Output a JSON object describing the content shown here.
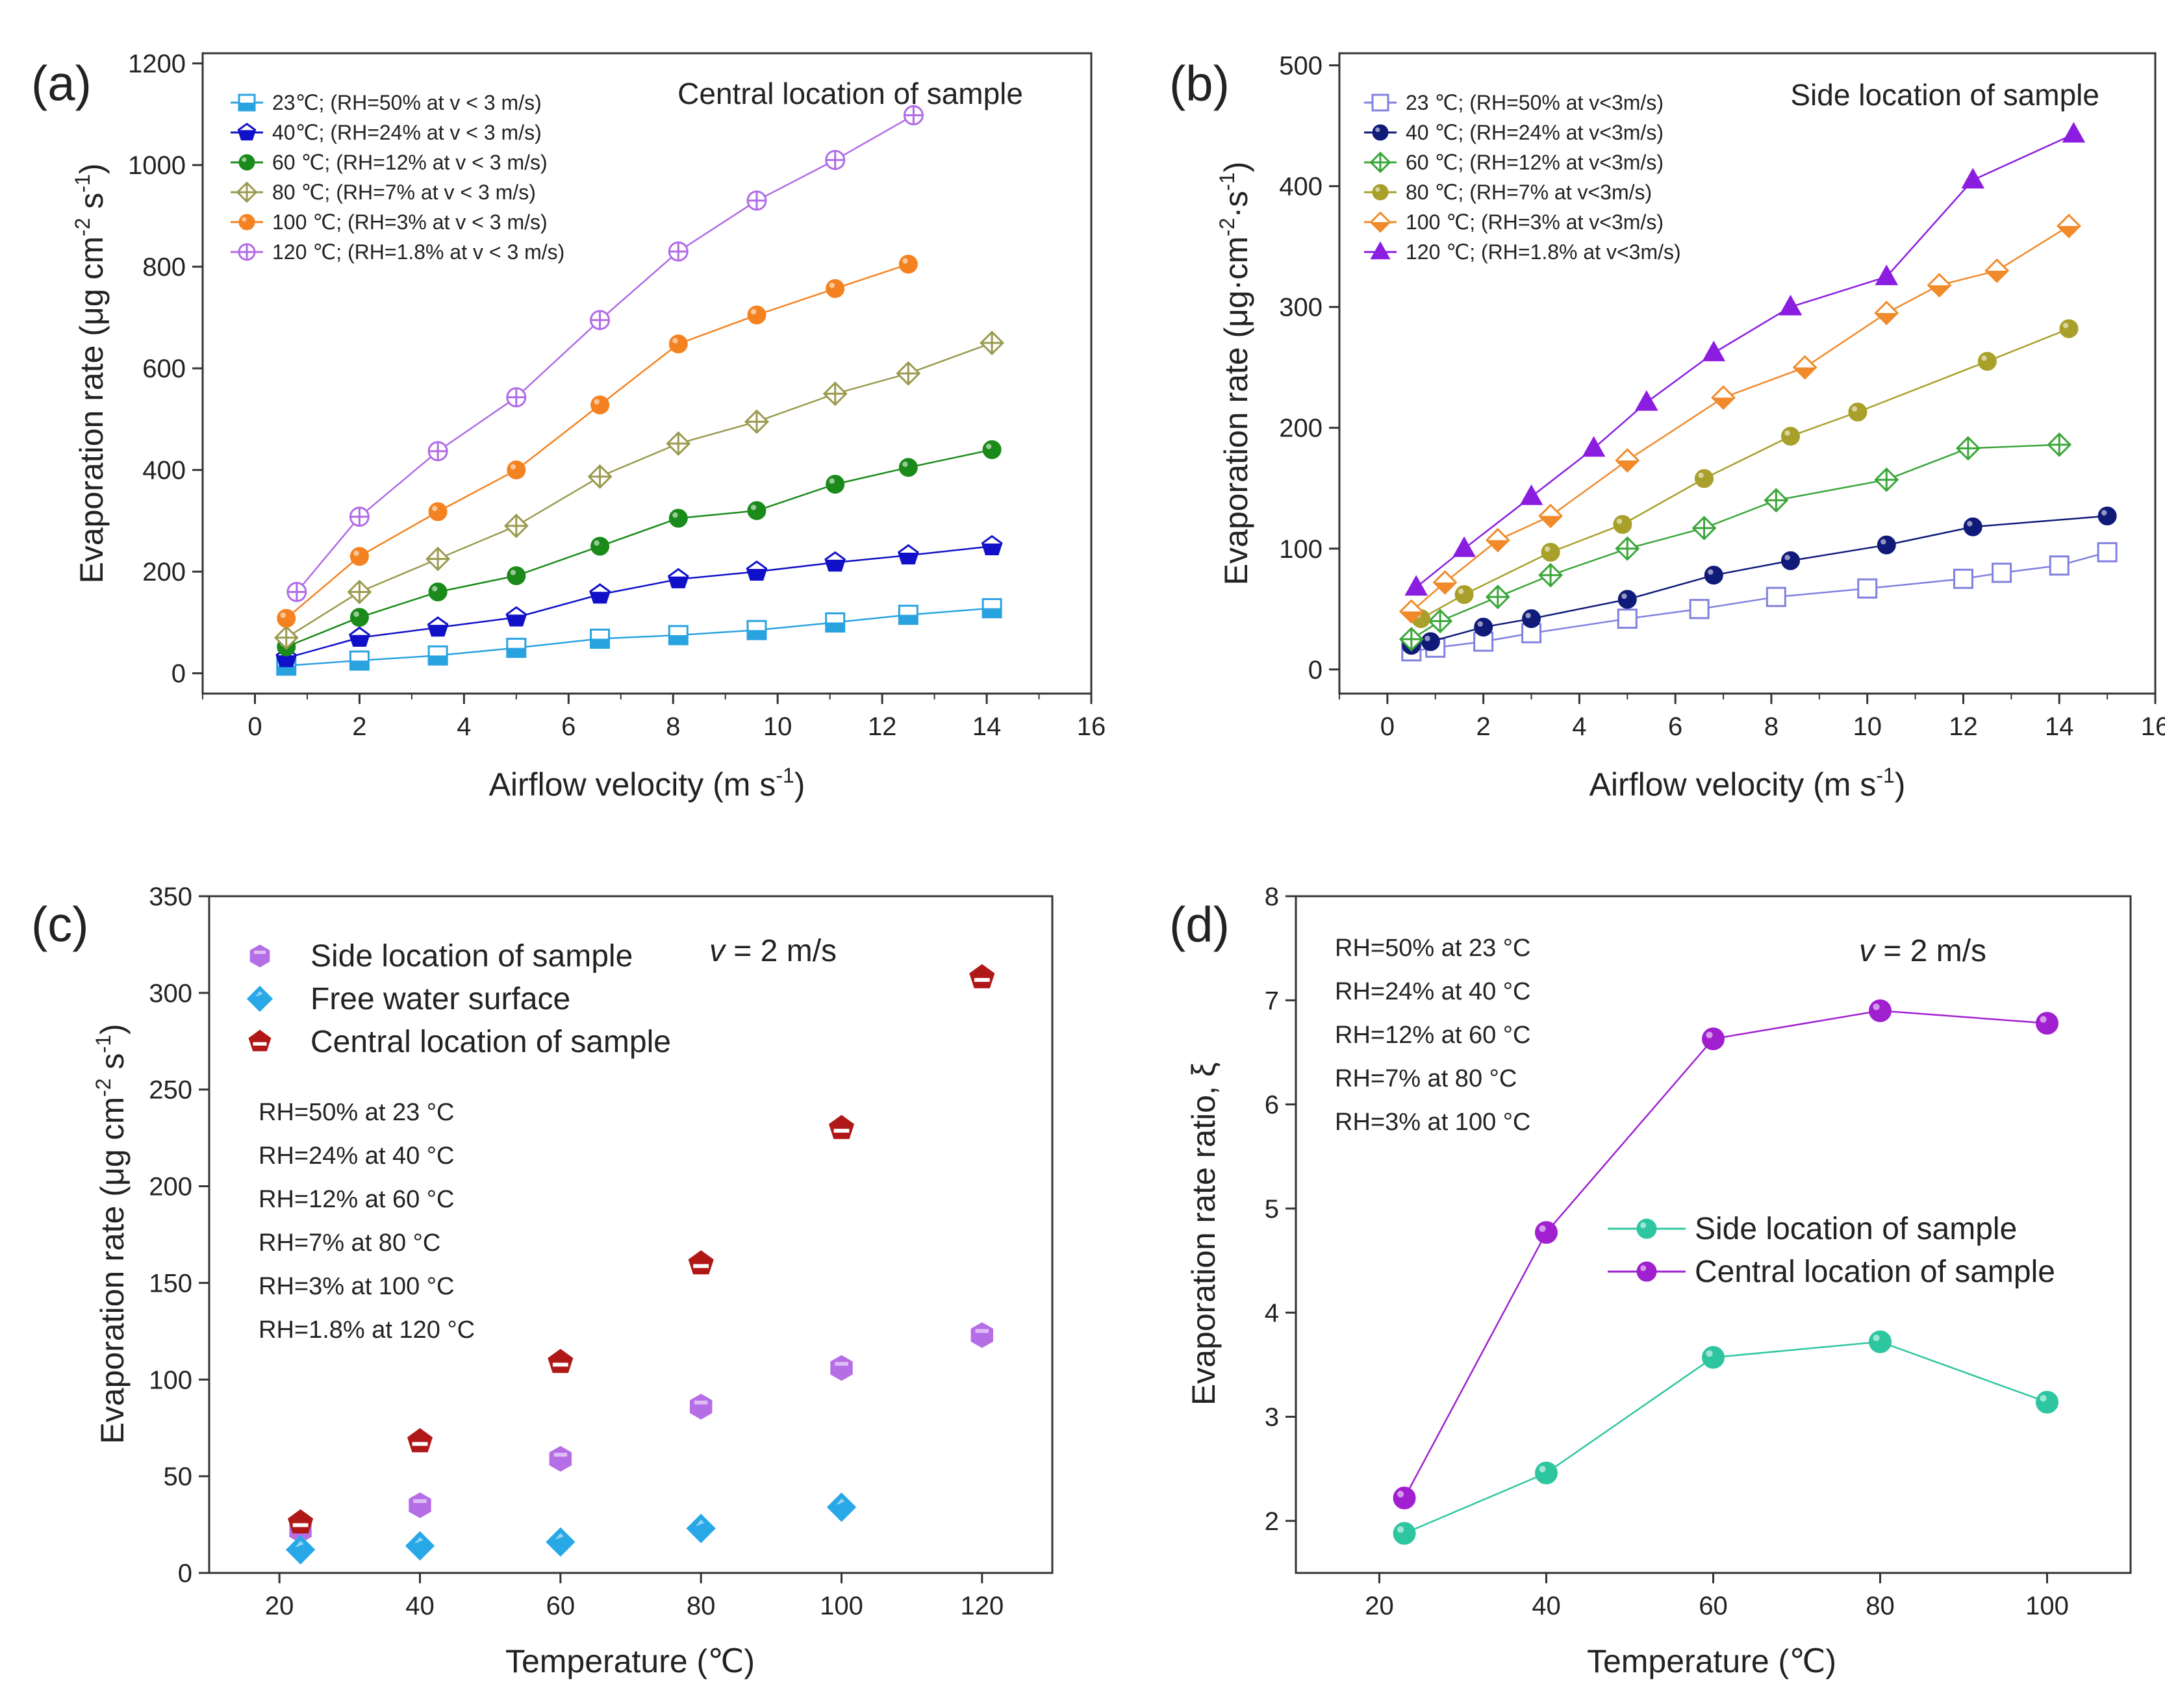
{
  "figure": {
    "panels": [
      "(a)",
      "(b)",
      "(c)",
      "(d)"
    ]
  },
  "chart_data": [
    {
      "id": "a",
      "type": "line",
      "panel_label": "(a)",
      "title": "Central location of sample",
      "xlabel": "Airflow velocity (m s",
      "xlabel_sup": "-1",
      "xlabel_tail": ")",
      "ylabel": "Evaporation rate (μg cm",
      "ylabel_sup1": "-2",
      "ylabel_mid": " s",
      "ylabel_sup2": "-1",
      "ylabel_tail": ")",
      "xlim": [
        -1,
        16
      ],
      "ylim": [
        -40,
        1220
      ],
      "xticks": [
        0,
        2,
        4,
        6,
        8,
        10,
        12,
        14,
        16
      ],
      "yticks": [
        0,
        200,
        400,
        600,
        800,
        1000,
        1200
      ],
      "series": [
        {
          "name": "23℃; (RH=50% at v < 3 m/s)",
          "color": "#29a3e0",
          "marker": "square-half",
          "x": [
            0.6,
            2,
            3.5,
            5,
            6.6,
            8.1,
            9.6,
            11.1,
            12.5,
            14.1
          ],
          "y": [
            15,
            25,
            35,
            50,
            68,
            75,
            85,
            100,
            115,
            128
          ]
        },
        {
          "name": "40℃; (RH=24% at v < 3 m/s)",
          "color": "#1010c8",
          "marker": "pentagon-half",
          "x": [
            0.6,
            2,
            3.5,
            5,
            6.6,
            8.1,
            9.6,
            11.1,
            12.5,
            14.1
          ],
          "y": [
            30,
            70,
            90,
            110,
            155,
            185,
            200,
            218,
            232,
            250
          ]
        },
        {
          "name": "60 ℃; (RH=12% at v < 3 m/s)",
          "color": "#1a8a1a",
          "marker": "circle-ball",
          "x": [
            0.6,
            2,
            3.5,
            5,
            6.6,
            8.1,
            9.6,
            11.1,
            12.5,
            14.1
          ],
          "y": [
            52,
            110,
            160,
            192,
            250,
            305,
            320,
            372,
            405,
            440
          ]
        },
        {
          "name": "80 ℃; (RH=7% at v < 3 m/s)",
          "color": "#9a9a50",
          "marker": "diamond-cross",
          "x": [
            0.6,
            2,
            3.5,
            5,
            6.6,
            8.1,
            9.6,
            11.1,
            12.5,
            14.1
          ],
          "y": [
            70,
            160,
            225,
            290,
            387,
            452,
            495,
            550,
            590,
            650
          ]
        },
        {
          "name": "100 ℃; (RH=3% at v < 3 m/s)",
          "color": "#f58220",
          "marker": "circle-ball",
          "x": [
            0.6,
            2,
            3.5,
            5,
            6.6,
            8.1,
            9.6,
            11.1,
            12.5
          ],
          "y": [
            108,
            230,
            318,
            400,
            528,
            648,
            705,
            757,
            805
          ]
        },
        {
          "name": "120 ℃; (RH=1.8% at v < 3 m/s)",
          "color": "#b06be6",
          "marker": "circle-cross",
          "x": [
            0.8,
            2,
            3.5,
            5,
            6.6,
            8.1,
            9.6,
            11.1,
            12.6
          ],
          "y": [
            160,
            308,
            437,
            543,
            695,
            830,
            930,
            1010,
            1098
          ]
        }
      ]
    },
    {
      "id": "b",
      "type": "line",
      "panel_label": "(b)",
      "title": "Side location of sample",
      "xlabel": "Airflow velocity (m s",
      "xlabel_sup": "-1",
      "xlabel_tail": ")",
      "ylabel": "Evaporation rate (μg·cm",
      "ylabel_sup1": "-2",
      "ylabel_mid": "·s",
      "ylabel_sup2": "-1",
      "ylabel_tail": ")",
      "xlim": [
        -1,
        16
      ],
      "ylim": [
        -20,
        510
      ],
      "xticks": [
        0,
        2,
        4,
        6,
        8,
        10,
        12,
        14,
        16
      ],
      "yticks": [
        0,
        100,
        200,
        300,
        400,
        500
      ],
      "series": [
        {
          "name": "23 ℃; (RH=50% at v<3m/s)",
          "color": "#8080e0",
          "marker": "square-open",
          "x": [
            0.5,
            1,
            2,
            3,
            5,
            6.5,
            8.1,
            10,
            12,
            12.8,
            14,
            15
          ],
          "y": [
            15,
            18,
            23,
            30,
            42,
            50,
            60,
            67,
            75,
            80,
            86,
            97
          ]
        },
        {
          "name": "40 ℃; (RH=24% at v<3m/s)",
          "color": "#101a78",
          "marker": "circle-ball",
          "x": [
            0.5,
            0.9,
            2,
            3,
            5,
            6.8,
            8.4,
            10.4,
            12.2,
            15
          ],
          "y": [
            20,
            23,
            35,
            42,
            58,
            78,
            90,
            103,
            118,
            127
          ]
        },
        {
          "name": "60 ℃; (RH=12% at v<3m/s)",
          "color": "#3aa63a",
          "marker": "diamond-cross",
          "x": [
            0.5,
            1.1,
            2.3,
            3.4,
            5,
            6.6,
            8.1,
            10.4,
            12.1,
            14
          ],
          "y": [
            25,
            40,
            60,
            78,
            100,
            117,
            140,
            157,
            183,
            186
          ]
        },
        {
          "name": "80 ℃; (RH=7% at v<3m/s)",
          "color": "#a8a02a",
          "marker": "circle-ball",
          "x": [
            0.7,
            1.6,
            3.4,
            4.9,
            6.6,
            8.4,
            9.8,
            12.5,
            14.2
          ],
          "y": [
            42,
            62,
            97,
            120,
            158,
            193,
            213,
            255,
            282
          ]
        },
        {
          "name": "100 ℃; (RH=3% at v<3m/s)",
          "color": "#f08a2a",
          "marker": "diamond-half",
          "x": [
            0.5,
            1.2,
            2.3,
            3.4,
            5,
            7,
            8.7,
            10.4,
            11.5,
            12.7,
            14.2
          ],
          "y": [
            48,
            72,
            107,
            127,
            173,
            225,
            250,
            295,
            318,
            330,
            367
          ]
        },
        {
          "name": "120 ℃; (RH=1.8% at v<3m/s)",
          "color": "#8b1de0",
          "marker": "triangle",
          "x": [
            0.6,
            1.6,
            3,
            4.3,
            5.4,
            6.8,
            8.4,
            10.4,
            12.2,
            14.3
          ],
          "y": [
            68,
            100,
            143,
            183,
            221,
            262,
            300,
            325,
            405,
            443
          ]
        }
      ]
    },
    {
      "id": "c",
      "type": "scatter",
      "panel_label": "(c)",
      "xlabel": "Temperature (℃)",
      "ylabel": "Evaporation rate (μg cm",
      "ylabel_sup1": "-2",
      "ylabel_mid": " s",
      "ylabel_sup2": "-1",
      "ylabel_tail": ")",
      "xlim": [
        10,
        130
      ],
      "ylim": [
        0,
        350
      ],
      "xticks": [
        20,
        40,
        60,
        80,
        100,
        120
      ],
      "yticks": [
        0,
        50,
        100,
        150,
        200,
        250,
        300,
        350
      ],
      "annotation_v": "v",
      "annotation_eq": " = 2 m/s",
      "notes": [
        "RH=50% at 23 °C",
        "RH=24% at 40 °C",
        "RH=12% at 60 °C",
        "RH=7% at 80 °C",
        "RH=3% at 100 °C",
        "RH=1.8% at 120 °C"
      ],
      "series": [
        {
          "name": "Side location of sample",
          "color": "#b56ee6",
          "marker": "hexagon",
          "x": [
            23,
            40,
            60,
            80,
            100,
            120
          ],
          "y": [
            22,
            35,
            59,
            86,
            106,
            123
          ]
        },
        {
          "name": "Free water surface",
          "color": "#29a8e8",
          "marker": "diamond",
          "x": [
            23,
            40,
            60,
            80,
            100
          ],
          "y": [
            12,
            14,
            16,
            23,
            34
          ]
        },
        {
          "name": "Central location of sample",
          "color": "#b01818",
          "marker": "pentagon",
          "x": [
            23,
            40,
            60,
            80,
            100,
            120
          ],
          "y": [
            26,
            68,
            109,
            160,
            230,
            308
          ]
        }
      ]
    },
    {
      "id": "d",
      "type": "line",
      "panel_label": "(d)",
      "xlabel": "Temperature (℃)",
      "ylabel": "Evaporation rate ratio, ξ",
      "xlim": [
        10,
        110
      ],
      "ylim": [
        1.5,
        8
      ],
      "xticks": [
        20,
        40,
        60,
        80,
        100
      ],
      "yticks": [
        2,
        3,
        4,
        5,
        6,
        7,
        8
      ],
      "annotation_v": "v",
      "annotation_eq": " = 2 m/s",
      "notes": [
        "RH=50% at 23 °C",
        "RH=24% at 40 °C",
        "RH=12% at 60 °C",
        "RH=7% at 80 °C",
        "RH=3% at 100 °C"
      ],
      "series": [
        {
          "name": "Side location of sample",
          "color": "#2ec6a0",
          "marker": "ball",
          "x": [
            23,
            40,
            60,
            80,
            100
          ],
          "y": [
            1.88,
            2.46,
            3.57,
            3.72,
            3.14
          ]
        },
        {
          "name": "Central location of sample",
          "color": "#a020d0",
          "marker": "ball",
          "x": [
            23,
            40,
            60,
            80,
            100
          ],
          "y": [
            2.22,
            4.77,
            6.63,
            6.9,
            6.78
          ]
        }
      ]
    }
  ]
}
